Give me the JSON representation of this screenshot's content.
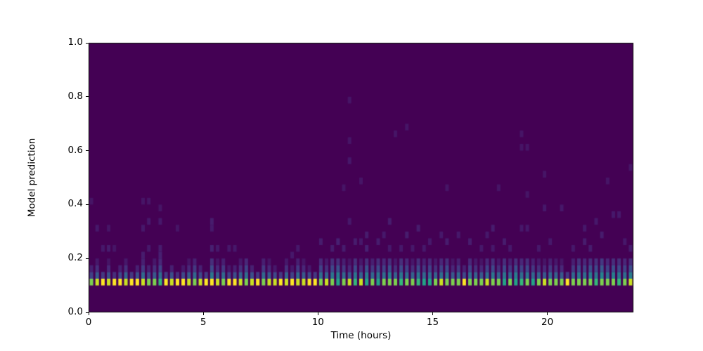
{
  "chart_data": {
    "type": "heatmap",
    "title": "",
    "xlabel": "Time (hours)",
    "ylabel": "Model prediction",
    "x_range": [
      0,
      23.75
    ],
    "y_range": [
      0.0,
      1.0
    ],
    "x_bins": 95,
    "y_bins": 40,
    "x_bin_width_hours": 0.25,
    "y_bin_width": 0.025,
    "grid": false,
    "legend_position": "none",
    "x_ticks": [
      {
        "value": 0,
        "label": "0"
      },
      {
        "value": 5,
        "label": "5"
      },
      {
        "value": 10,
        "label": "10"
      },
      {
        "value": 15,
        "label": "15"
      },
      {
        "value": 20,
        "label": "20"
      }
    ],
    "y_ticks": [
      {
        "value": 0.0,
        "label": "0.0"
      },
      {
        "value": 0.2,
        "label": "0.2"
      },
      {
        "value": 0.4,
        "label": "0.4"
      },
      {
        "value": 0.6,
        "label": "0.6"
      },
      {
        "value": 0.8,
        "label": "0.8"
      },
      {
        "value": 1.0,
        "label": "1.0"
      }
    ],
    "colormap": {
      "name": "viridis",
      "background_hex": "#440154",
      "stops": [
        [
          0.0,
          "#440154"
        ],
        [
          0.1,
          "#482878"
        ],
        [
          0.2,
          "#3e4989"
        ],
        [
          0.3,
          "#31688e"
        ],
        [
          0.4,
          "#26828e"
        ],
        [
          0.5,
          "#1f9e89"
        ],
        [
          0.6,
          "#35b779"
        ],
        [
          0.7,
          "#6ece58"
        ],
        [
          0.8,
          "#b5de2b"
        ],
        [
          0.9,
          "#dfe318"
        ],
        [
          1.0,
          "#fde725"
        ]
      ]
    },
    "cells": {
      "band_row": 4,
      "band_y_interval": [
        0.1,
        0.125
      ],
      "band_values": [
        0.72,
        0.85,
        1.0,
        0.85,
        1.0,
        1.0,
        0.85,
        1.0,
        1.0,
        0.85,
        0.72,
        0.72,
        0.6,
        1.0,
        0.85,
        1.0,
        1.0,
        0.85,
        0.72,
        0.85,
        1.0,
        1.0,
        0.85,
        0.72,
        1.0,
        1.0,
        0.85,
        0.72,
        0.85,
        1.0,
        0.72,
        0.85,
        0.85,
        1.0,
        0.85,
        1.0,
        0.85,
        0.85,
        1.0,
        1.0,
        0.72,
        0.85,
        0.72,
        0.52,
        0.72,
        0.85,
        0.6,
        0.85,
        0.52,
        0.72,
        0.52,
        0.72,
        0.72,
        0.72,
        0.6,
        0.72,
        0.72,
        0.6,
        0.52,
        0.52,
        0.72,
        0.85,
        0.72,
        0.72,
        0.72,
        1.0,
        0.72,
        0.72,
        0.72,
        0.85,
        0.72,
        0.72,
        0.52,
        0.72,
        0.52,
        0.6,
        0.72,
        0.52,
        0.72,
        0.85,
        0.72,
        0.72,
        0.72,
        1.0,
        0.72,
        0.72,
        0.72,
        0.72,
        0.6,
        0.72,
        0.72,
        0.72,
        0.6,
        0.72,
        0.85
      ],
      "row5_values": [
        0.18,
        0.25,
        0.15,
        0.22,
        0.12,
        0.2,
        0.28,
        0.15,
        0.22,
        0.3,
        0.2,
        0.25,
        0.32,
        0.15,
        0.22,
        0.12,
        0.2,
        0.25,
        0.3,
        0.2,
        0.15,
        0.35,
        0.25,
        0.3,
        0.18,
        0.22,
        0.28,
        0.32,
        0.22,
        0.15,
        0.3,
        0.25,
        0.2,
        0.15,
        0.28,
        0.18,
        0.3,
        0.25,
        0.2,
        0.15,
        0.32,
        0.28,
        0.35,
        0.38,
        0.3,
        0.25,
        0.35,
        0.28,
        0.38,
        0.3,
        0.35,
        0.32,
        0.38,
        0.28,
        0.35,
        0.32,
        0.28,
        0.35,
        0.3,
        0.32,
        0.28,
        0.32,
        0.35,
        0.25,
        0.3,
        0.2,
        0.32,
        0.28,
        0.25,
        0.32,
        0.35,
        0.28,
        0.35,
        0.3,
        0.38,
        0.32,
        0.35,
        0.3,
        0.28,
        0.25,
        0.3,
        0.28,
        0.25,
        0.15,
        0.3,
        0.35,
        0.32,
        0.38,
        0.35,
        0.4,
        0.32,
        0.38,
        0.35,
        0.32,
        0.38
      ],
      "row6_values": [
        0.08,
        0.12,
        0,
        0.1,
        0,
        0.08,
        0.12,
        0,
        0.08,
        0.15,
        0.08,
        0.12,
        0.18,
        0,
        0.08,
        0,
        0.06,
        0.1,
        0.15,
        0.08,
        0,
        0.2,
        0.1,
        0.15,
        0.06,
        0.08,
        0.12,
        0.18,
        0.08,
        0,
        0.15,
        0.1,
        0.06,
        0,
        0.12,
        0.06,
        0.15,
        0.1,
        0.06,
        0,
        0.18,
        0.12,
        0.2,
        0.22,
        0.15,
        0.1,
        0.2,
        0.12,
        0.22,
        0.15,
        0.2,
        0.18,
        0.22,
        0.12,
        0.2,
        0.18,
        0.12,
        0.2,
        0.15,
        0.18,
        0.12,
        0.18,
        0.2,
        0.1,
        0.15,
        0.08,
        0.18,
        0.12,
        0.1,
        0.18,
        0.2,
        0.12,
        0.2,
        0.15,
        0.22,
        0.18,
        0.2,
        0.15,
        0.12,
        0.1,
        0.15,
        0.12,
        0.1,
        0,
        0.15,
        0.2,
        0.18,
        0.22,
        0.2,
        0.25,
        0.18,
        0.22,
        0.2,
        0.18,
        0.22
      ],
      "row7_values": [
        0,
        0.06,
        0,
        0.05,
        0,
        0,
        0.06,
        0,
        0,
        0.08,
        0,
        0.06,
        0.1,
        0,
        0,
        0,
        0,
        0.05,
        0.08,
        0,
        0,
        0.12,
        0.05,
        0.08,
        0,
        0,
        0.06,
        0.1,
        0,
        0,
        0.08,
        0.05,
        0,
        0,
        0.06,
        0,
        0.08,
        0.05,
        0,
        0,
        0.1,
        0.06,
        0.12,
        0.12,
        0.08,
        0.05,
        0.12,
        0.06,
        0.12,
        0.08,
        0.12,
        0.1,
        0.12,
        0.06,
        0.12,
        0.1,
        0.06,
        0.12,
        0.08,
        0.1,
        0.06,
        0.1,
        0.12,
        0.05,
        0.08,
        0,
        0.1,
        0.06,
        0.05,
        0.1,
        0.12,
        0.06,
        0.12,
        0.08,
        0.12,
        0.1,
        0.12,
        0.08,
        0.06,
        0.05,
        0.08,
        0.06,
        0.05,
        0,
        0.08,
        0.12,
        0.1,
        0.12,
        0.12,
        0.15,
        0.1,
        0.12,
        0.12,
        0.1,
        0.12
      ],
      "sparse_cells": [
        [
          0,
          16,
          0.05
        ],
        [
          1,
          12,
          0.06
        ],
        [
          2,
          9,
          0.06
        ],
        [
          3,
          9,
          0.07
        ],
        [
          3,
          12,
          0.05
        ],
        [
          4,
          9,
          0.05
        ],
        [
          9,
          16,
          0.05
        ],
        [
          9,
          12,
          0.06
        ],
        [
          9,
          8,
          0.07
        ],
        [
          10,
          16,
          0.05
        ],
        [
          10,
          13,
          0.06
        ],
        [
          10,
          9,
          0.06
        ],
        [
          12,
          15,
          0.05
        ],
        [
          12,
          13,
          0.06
        ],
        [
          12,
          9,
          0.07
        ],
        [
          12,
          8,
          0.08
        ],
        [
          15,
          12,
          0.05
        ],
        [
          21,
          13,
          0.07
        ],
        [
          21,
          12,
          0.06
        ],
        [
          21,
          9,
          0.08
        ],
        [
          22,
          9,
          0.06
        ],
        [
          24,
          9,
          0.06
        ],
        [
          25,
          9,
          0.06
        ],
        [
          35,
          8,
          0.06
        ],
        [
          36,
          9,
          0.06
        ],
        [
          40,
          10,
          0.07
        ],
        [
          42,
          9,
          0.07
        ],
        [
          43,
          10,
          0.08
        ],
        [
          44,
          18,
          0.05
        ],
        [
          44,
          9,
          0.07
        ],
        [
          45,
          31,
          0.05
        ],
        [
          45,
          25,
          0.05
        ],
        [
          45,
          22,
          0.06
        ],
        [
          45,
          13,
          0.06
        ],
        [
          46,
          10,
          0.07
        ],
        [
          47,
          19,
          0.05
        ],
        [
          47,
          10,
          0.06
        ],
        [
          48,
          11,
          0.07
        ],
        [
          48,
          9,
          0.08
        ],
        [
          50,
          10,
          0.07
        ],
        [
          51,
          11,
          0.06
        ],
        [
          52,
          13,
          0.07
        ],
        [
          52,
          9,
          0.06
        ],
        [
          53,
          26,
          0.05
        ],
        [
          54,
          9,
          0.06
        ],
        [
          55,
          27,
          0.05
        ],
        [
          55,
          11,
          0.07
        ],
        [
          56,
          9,
          0.06
        ],
        [
          57,
          12,
          0.07
        ],
        [
          58,
          9,
          0.06
        ],
        [
          59,
          10,
          0.06
        ],
        [
          61,
          11,
          0.06
        ],
        [
          62,
          18,
          0.05
        ],
        [
          62,
          10,
          0.07
        ],
        [
          64,
          11,
          0.06
        ],
        [
          66,
          10,
          0.07
        ],
        [
          68,
          9,
          0.06
        ],
        [
          69,
          11,
          0.06
        ],
        [
          70,
          12,
          0.07
        ],
        [
          70,
          9,
          0.06
        ],
        [
          71,
          18,
          0.05
        ],
        [
          72,
          10,
          0.07
        ],
        [
          73,
          9,
          0.06
        ],
        [
          75,
          26,
          0.05
        ],
        [
          75,
          24,
          0.05
        ],
        [
          75,
          12,
          0.06
        ],
        [
          76,
          24,
          0.05
        ],
        [
          76,
          17,
          0.05
        ],
        [
          76,
          12,
          0.06
        ],
        [
          78,
          9,
          0.06
        ],
        [
          79,
          20,
          0.05
        ],
        [
          79,
          15,
          0.06
        ],
        [
          80,
          10,
          0.06
        ],
        [
          82,
          15,
          0.06
        ],
        [
          84,
          9,
          0.06
        ],
        [
          86,
          12,
          0.06
        ],
        [
          86,
          10,
          0.07
        ],
        [
          87,
          9,
          0.07
        ],
        [
          88,
          13,
          0.06
        ],
        [
          89,
          11,
          0.07
        ],
        [
          90,
          19,
          0.05
        ],
        [
          91,
          14,
          0.06
        ],
        [
          92,
          14,
          0.06
        ],
        [
          93,
          10,
          0.06
        ],
        [
          94,
          21,
          0.05
        ],
        [
          94,
          9,
          0.07
        ]
      ]
    }
  }
}
